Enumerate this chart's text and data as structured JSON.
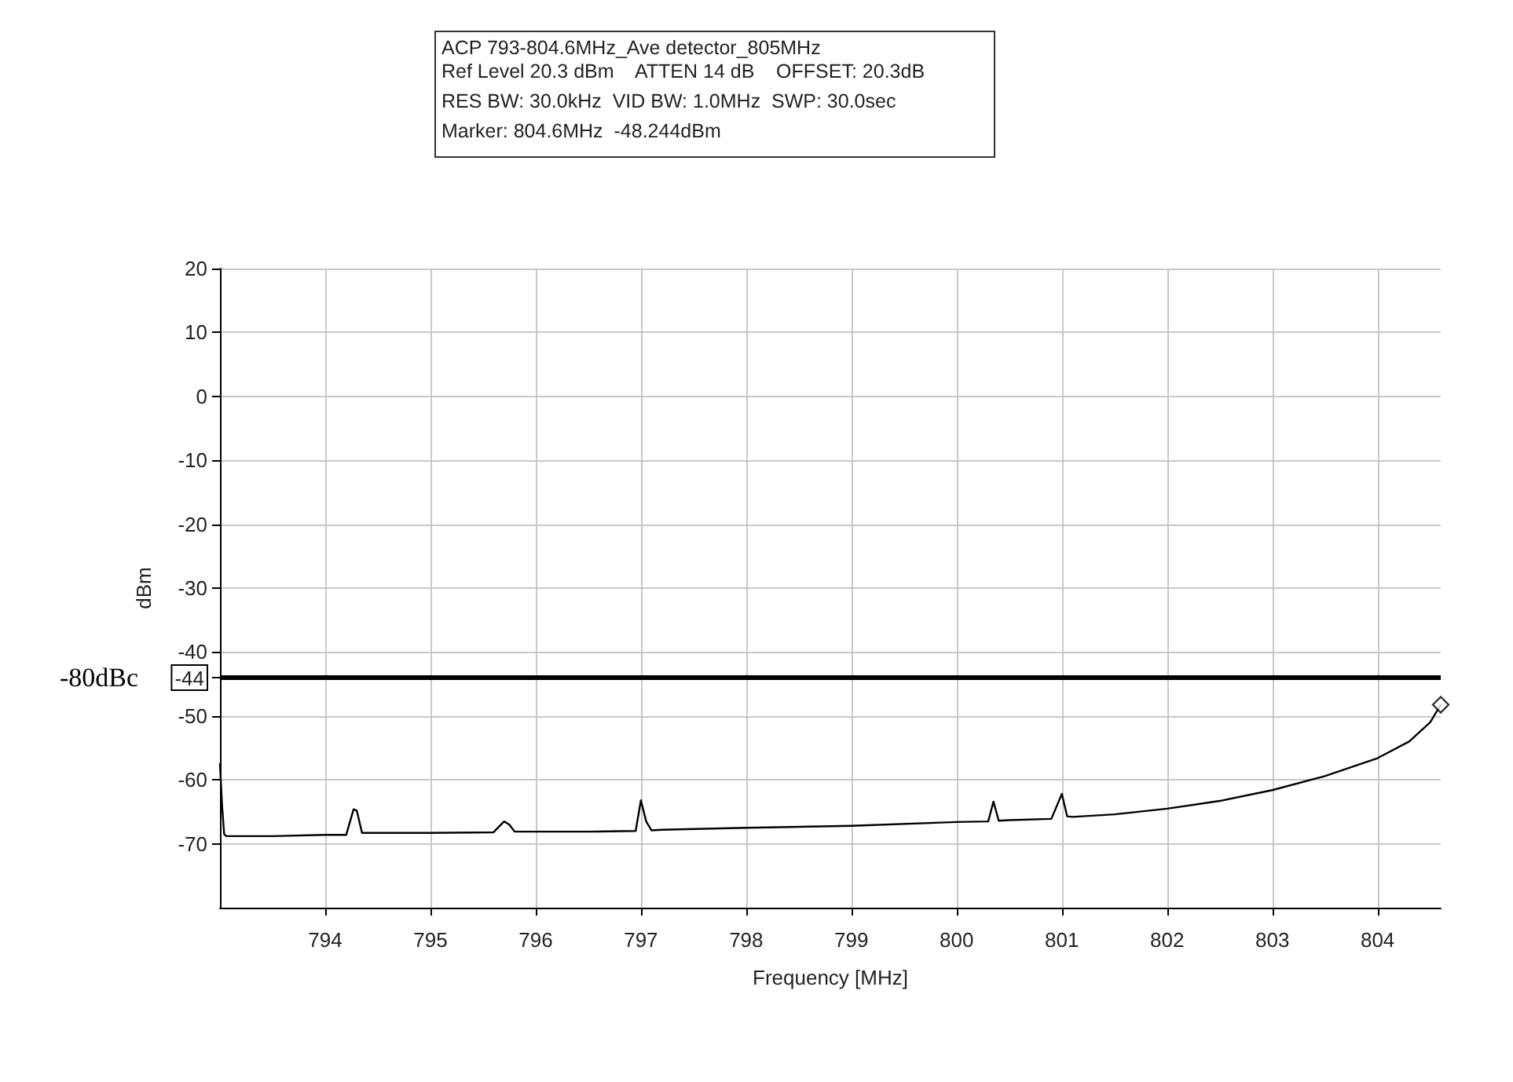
{
  "chart_data": {
    "type": "line",
    "title": "ACP 793-804.6MHz_Ave detector_805MHz",
    "annotations": [
      "Ref Level 20.3 dBm    ATTEN 14 dB    OFFSET: 20.3dB",
      "RES BW: 30.0kHz  VID BW: 1.0MHz  SWP: 30.0sec",
      "Marker: 804.6MHz  -48.244dBm"
    ],
    "xlabel": "Frequency [MHz]",
    "ylabel": "dBm",
    "xlim": [
      793,
      804.6
    ],
    "xticks": [
      794,
      795,
      796,
      797,
      798,
      799,
      800,
      801,
      802,
      803,
      804
    ],
    "ylim": [
      -80,
      20
    ],
    "yticks": [
      -70,
      -60,
      -50,
      {
        "value": -44,
        "label": "-44"
      },
      -40,
      -30,
      -20,
      -10,
      0,
      10,
      20
    ],
    "grid": true,
    "ref_lines": [
      {
        "axis": "y",
        "value": -44,
        "label": "-80dBc",
        "color": "#000000"
      }
    ],
    "series": [
      {
        "color": "#000000",
        "x": [
          793.0,
          793.02,
          793.04,
          793.06,
          793.1,
          793.5,
          794.0,
          794.2,
          794.27,
          794.3,
          794.35,
          794.4,
          795.0,
          795.6,
          795.7,
          795.75,
          795.8,
          796.5,
          796.95,
          797.0,
          797.05,
          797.1,
          797.2,
          798.0,
          799.0,
          800.0,
          800.3,
          800.35,
          800.4,
          800.5,
          800.9,
          801.0,
          801.05,
          801.1,
          801.5,
          802.0,
          802.5,
          803.0,
          803.5,
          804.0,
          804.3,
          804.5,
          804.6
        ],
        "values": [
          -57.5,
          -64,
          -68.5,
          -68.8,
          -68.8,
          -68.8,
          -68.6,
          -68.6,
          -64.6,
          -64.8,
          -68.3,
          -68.3,
          -68.3,
          -68.2,
          -66.5,
          -67,
          -68.1,
          -68.1,
          -68,
          -63.2,
          -66.5,
          -67.9,
          -67.8,
          -67.5,
          -67.2,
          -66.6,
          -66.5,
          -63.4,
          -66.4,
          -66.3,
          -66.1,
          -62.2,
          -65.7,
          -65.8,
          -65.4,
          -64.5,
          -63.3,
          -61.6,
          -59.4,
          -56.6,
          -54,
          -51,
          -48.244
        ]
      },
      {
        "type": "scatter",
        "marker": "diamond",
        "color": "#000000",
        "x": [
          804.6
        ],
        "values": [
          -48.244
        ]
      }
    ]
  }
}
